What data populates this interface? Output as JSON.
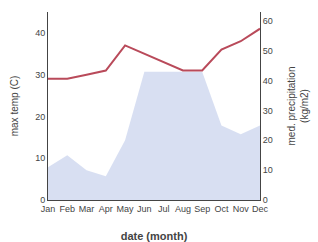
{
  "chart_data": {
    "type": "line",
    "xlabel": "date (month)",
    "ylabel": "max temp (C)",
    "y2label": "med. precipitation\n(kg/m2)",
    "categories": [
      "Jan",
      "Feb",
      "Mar",
      "Apr",
      "May",
      "Jun",
      "Jul",
      "Aug",
      "Sep",
      "Oct",
      "Nov",
      "Dec"
    ],
    "series": [
      {
        "type": "area",
        "axis": "y2",
        "color": "#b8c4e8",
        "values": [
          11,
          15,
          10,
          8,
          20,
          43,
          43,
          43,
          43,
          25,
          22,
          25
        ]
      },
      {
        "type": "line",
        "color": "#b94a5a",
        "values": [
          29,
          29,
          30,
          31,
          37,
          35,
          33,
          31,
          31,
          36,
          38,
          41
        ]
      }
    ],
    "ylim": [
      0,
      45
    ],
    "yticks": [
      0,
      10,
      20,
      30,
      40
    ],
    "y2lim": [
      0,
      63
    ],
    "y2ticks": [
      0,
      10,
      20,
      30,
      40,
      50,
      60
    ],
    "grid": false
  }
}
